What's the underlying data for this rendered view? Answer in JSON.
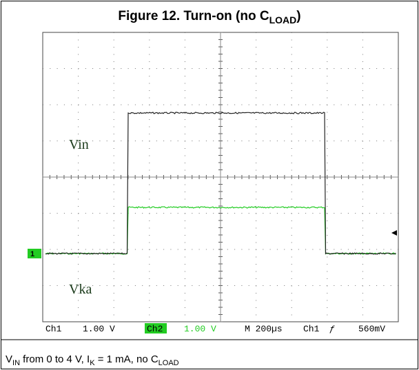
{
  "figure": {
    "title": {
      "text": "Figure 12. Turn-on (no C",
      "sub": "LOAD",
      "end": ")"
    },
    "scope": {
      "trace_labels": [
        "Vin",
        "Vka"
      ],
      "marker": "1",
      "status": {
        "ch1": "Ch1",
        "ch1_scale": "1.00 V",
        "ch2": "Ch2",
        "ch2_scale": "1.00 V",
        "timebase": "M 200µs",
        "trigger_src": "Ch1",
        "trigger_slope": "ƒ",
        "trigger_level": "560mV"
      }
    },
    "caption": {
      "p1": "V",
      "s1": "IN",
      "p2": " from 0 to 4 V, I",
      "s2": "K",
      "p3": " = 1 mA, no C",
      "s3": "LOAD"
    }
  }
}
